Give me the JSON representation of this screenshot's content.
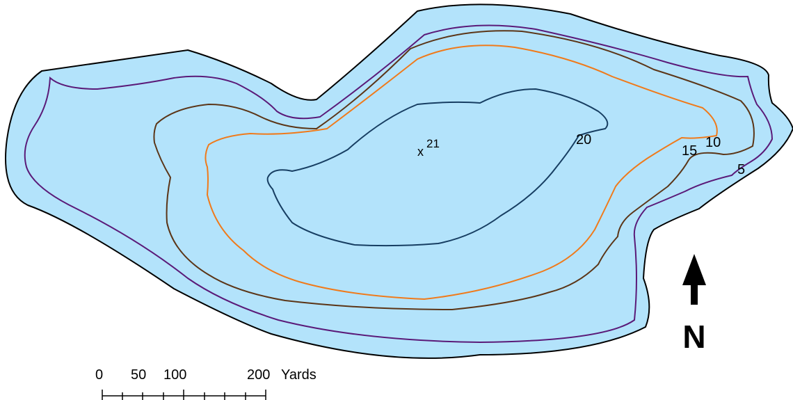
{
  "map": {
    "colors": {
      "water": "#b3e3fb",
      "shoreline": "#000000",
      "contour_5": "#5a1a78",
      "contour_10": "#5b3517",
      "contour_15": "#f07a1a",
      "contour_20": "#173e62"
    },
    "contours": [
      {
        "depth": "5"
      },
      {
        "depth": "10"
      },
      {
        "depth": "15"
      },
      {
        "depth": "20"
      }
    ],
    "spot_depth": {
      "marker": "x",
      "value": "21"
    },
    "north_arrow": {
      "icon": "north-arrow-icon",
      "letter": "N"
    },
    "scale_bar": {
      "tick_labels": [
        "0",
        "50",
        "100",
        "200"
      ],
      "unit": "Yards",
      "max_yards": 200
    }
  }
}
